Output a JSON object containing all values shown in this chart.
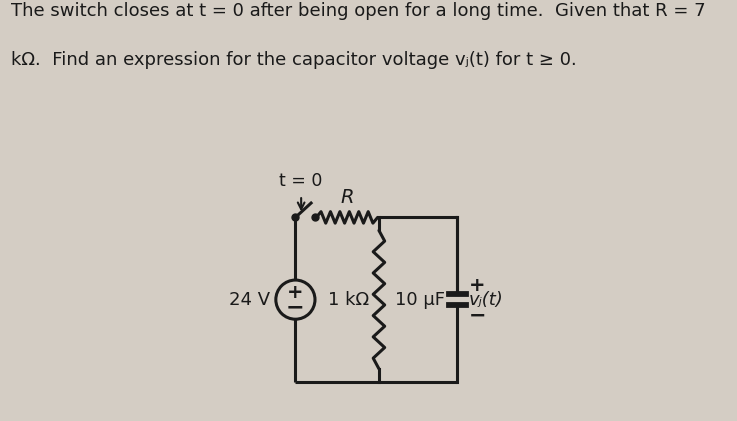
{
  "background_color": "#d4cdc4",
  "text_color": "#1a1a1a",
  "title_line1": "The switch closes at t = 0 after being open for a long time.  Given that R = 7",
  "title_line2": "kΩ.  Find an expression for the capacitor voltage vⱼ(t) for t ≥ 0.",
  "font_size_title": 13.0,
  "circuit": {
    "voltage_value": "24 V",
    "resistor_top_label": "R",
    "resistor_mid_label": "1 kΩ",
    "capacitor_label": "10 μF",
    "vc_label": "vⱼ(t)",
    "switch_label": "t = 0"
  },
  "fig_width": 7.37,
  "fig_height": 4.21,
  "dpi": 100
}
